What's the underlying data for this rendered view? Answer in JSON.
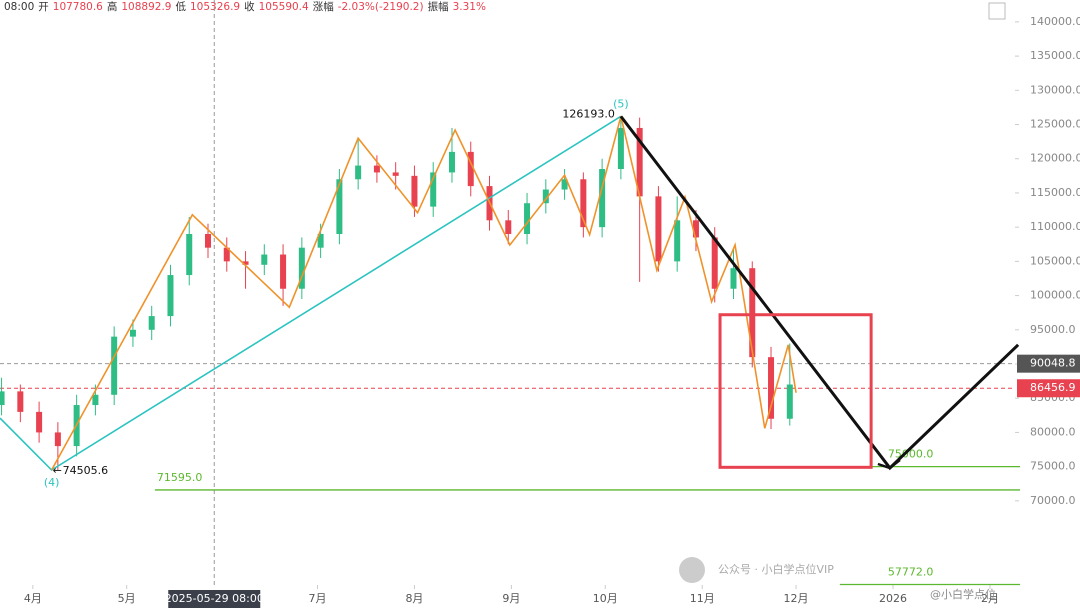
{
  "header": {
    "time": "08:00",
    "fields": [
      {
        "label": "开",
        "value": "107780.6"
      },
      {
        "label": "高",
        "value": "108892.9"
      },
      {
        "label": "低",
        "value": "105326.9"
      },
      {
        "label": "收",
        "value": "105590.4"
      },
      {
        "label": "涨幅",
        "value": "-2.03%(-2190.2)"
      },
      {
        "label": "振幅",
        "value": "3.31%"
      }
    ]
  },
  "chart_data": {
    "type": "candlestick",
    "x": [
      -10,
      -4,
      2,
      8,
      14,
      20,
      26,
      32,
      38,
      44,
      50,
      56,
      62,
      68,
      74,
      80,
      86,
      92,
      98,
      104,
      110,
      116,
      122,
      128,
      134,
      140,
      146,
      152,
      158,
      164,
      170,
      176,
      182,
      188,
      194,
      200,
      206,
      212,
      218,
      224,
      230,
      236,
      242
    ],
    "open": [
      84000,
      86000,
      83000,
      80000,
      78000,
      84000,
      85500,
      94000,
      95000,
      97000,
      103000,
      109000,
      107000,
      105000,
      104500,
      106000,
      101000,
      107000,
      109000,
      117000,
      119000,
      118000,
      117500,
      113000,
      118000,
      121000,
      116000,
      111000,
      109000,
      113500,
      115500,
      117000,
      110000,
      118500,
      124500,
      114500,
      105000,
      111000,
      108500,
      101000,
      104000,
      91000,
      82000
    ],
    "high": [
      88000,
      87000,
      84500,
      81500,
      85500,
      87000,
      95500,
      96500,
      98500,
      104500,
      111500,
      110500,
      108500,
      106500,
      107500,
      107500,
      108500,
      110500,
      118500,
      123000,
      120500,
      119500,
      119000,
      119500,
      124500,
      122500,
      117500,
      112500,
      115000,
      117000,
      118500,
      118000,
      120000,
      126193,
      126000,
      116000,
      114500,
      112500,
      110000,
      107000,
      105000,
      92500,
      93000
    ],
    "low": [
      82500,
      81500,
      78500,
      74505.6,
      76500,
      82500,
      84000,
      92500,
      93500,
      95500,
      101500,
      105500,
      103500,
      101000,
      103000,
      98500,
      99500,
      105500,
      107500,
      115500,
      116500,
      115500,
      111500,
      111500,
      116500,
      114500,
      109500,
      107500,
      107500,
      112000,
      114000,
      108500,
      108500,
      117000,
      102000,
      103500,
      103500,
      106500,
      99000,
      99500,
      89500,
      80500,
      81000
    ],
    "close": [
      86000,
      83000,
      80000,
      78000,
      84000,
      85500,
      94000,
      95000,
      97000,
      103000,
      109000,
      107000,
      105000,
      104500,
      106000,
      101000,
      107000,
      109000,
      117000,
      119000,
      118000,
      117500,
      113000,
      118000,
      121000,
      116000,
      111000,
      109000,
      113500,
      115500,
      117000,
      110000,
      118500,
      124500,
      114500,
      105000,
      111000,
      108500,
      101000,
      104000,
      91000,
      82000,
      87000
    ],
    "up_color": "#2ebd85",
    "down_color": "#e8414f",
    "xlim": [
      -10.5,
      314
    ],
    "ylim": [
      57700,
      143200
    ],
    "xticks": [
      {
        "value": 0,
        "label": "4月"
      },
      {
        "value": 30,
        "label": "5月"
      },
      {
        "value": 91,
        "label": "7月"
      },
      {
        "value": 122,
        "label": "8月"
      },
      {
        "value": 153,
        "label": "9月"
      },
      {
        "value": 183,
        "label": "10月"
      },
      {
        "value": 214,
        "label": "11月"
      },
      {
        "value": 244,
        "label": "12月"
      },
      {
        "value": 275,
        "label": "2026"
      },
      {
        "value": 306,
        "label": "2月"
      }
    ],
    "yticks": [
      {
        "value": 70000,
        "label": "70000.0"
      },
      {
        "value": 75000,
        "label": "75000.0"
      },
      {
        "value": 80000,
        "label": "80000.0"
      },
      {
        "value": 85000,
        "label": "85000.0"
      },
      {
        "value": 90000,
        "label": "90000.0"
      },
      {
        "value": 95000,
        "label": "95000.0"
      },
      {
        "value": 100000,
        "label": "100000.0"
      },
      {
        "value": 105000,
        "label": "105000.0"
      },
      {
        "value": 110000,
        "label": "110000.0"
      },
      {
        "value": 115000,
        "label": "115000.0"
      },
      {
        "value": 120000,
        "label": "120000.0"
      },
      {
        "value": 125000,
        "label": "125000.0"
      },
      {
        "value": 130000,
        "label": "130000.0"
      },
      {
        "value": 135000,
        "label": "135000.0"
      },
      {
        "value": 140000,
        "label": "140000.0"
      }
    ],
    "crosshair": {
      "x": 58,
      "label": "2025-05-29 08:00"
    },
    "price_tags": [
      {
        "value": 90048.8,
        "color": "#555555",
        "line": "#999999"
      },
      {
        "value": 86456.9,
        "color": "#e8414f",
        "line": "#e8414f"
      }
    ],
    "levels": [
      {
        "value": 71595,
        "label": "71595.0",
        "from": 39
      },
      {
        "value": 75000,
        "label": "75000.0",
        "from": 258
      },
      {
        "value": 57772,
        "label": "57772.0",
        "from": 258
      }
    ],
    "level_color": "#5cb82e",
    "peak": {
      "x": 188,
      "value": 126193,
      "label": "126193.0",
      "wave": "(5)"
    },
    "trough": {
      "x": 6,
      "value": 74505.6,
      "wave": "(4)"
    },
    "zigzag": {
      "color": "#f0922a",
      "x": [
        6,
        51,
        82,
        104,
        123,
        135,
        152.5,
        170,
        178,
        188,
        199.5,
        208.5,
        217,
        224.5,
        234,
        241.5,
        244
      ],
      "y": [
        74505.6,
        111800,
        98300,
        123000,
        112100,
        124200,
        107400,
        117600,
        108900,
        126193,
        103700,
        114400,
        99100,
        107400,
        80600,
        92800,
        85800
      ]
    },
    "trend": {
      "color": "#2bc4c0",
      "x": [
        -10.5,
        6,
        188
      ],
      "y": [
        82100,
        74505.6,
        126193
      ]
    },
    "forecast": {
      "color": "#111111",
      "x": [
        188,
        274,
        315
      ],
      "y": [
        126193,
        74800,
        92800
      ]
    },
    "box": {
      "color": "#e8414f",
      "x": [
        219.7,
        268
      ],
      "y": [
        74900,
        97200
      ]
    }
  },
  "watermark": {
    "main": "公众号 · 小白学点位VIP",
    "corner": "@小白学点位"
  }
}
